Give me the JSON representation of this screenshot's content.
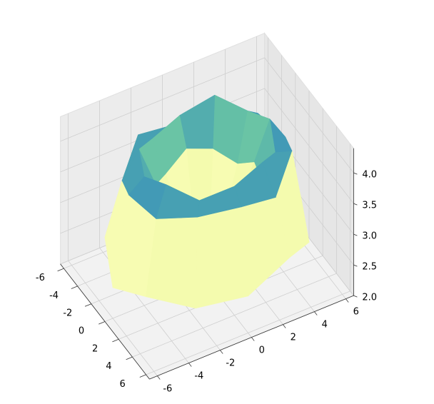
{
  "chart_data": {
    "type": "surface3d",
    "colormap": "Spectral",
    "grid": true,
    "r": [
      0,
      1,
      2,
      3,
      4,
      5,
      6
    ],
    "theta": [
      0,
      30,
      60,
      90,
      120,
      150,
      180,
      210,
      240,
      270,
      300,
      330
    ],
    "z": [
      [
        2.0,
        2.0,
        2.0,
        2.0,
        2.0,
        2.0,
        2.0,
        2.0,
        2.0,
        2.0,
        2.0,
        2.0
      ],
      [
        2.3,
        2.2,
        2.4,
        2.3,
        2.1,
        2.3,
        2.4,
        2.2,
        2.3,
        2.5,
        2.3,
        2.2
      ],
      [
        2.9,
        3.0,
        2.8,
        3.1,
        2.9,
        3.0,
        2.7,
        3.0,
        2.9,
        3.1,
        2.8,
        3.0
      ],
      [
        3.6,
        3.5,
        3.7,
        3.6,
        3.4,
        3.6,
        3.7,
        3.5,
        3.6,
        3.8,
        3.5,
        3.6
      ],
      [
        4.1,
        4.2,
        4.0,
        4.2,
        4.1,
        4.3,
        4.1,
        4.0,
        4.2,
        4.1,
        4.2,
        4.0
      ],
      [
        3.9,
        3.7,
        4.0,
        3.8,
        3.9,
        3.6,
        3.8,
        4.0,
        3.7,
        3.9,
        3.8,
        3.9
      ],
      [
        2.6,
        2.8,
        2.5,
        2.7,
        2.9,
        2.6,
        2.4,
        2.7,
        2.8,
        2.5,
        2.7,
        2.6
      ]
    ],
    "xlim": [
      -6.5,
      6.5
    ],
    "ylim": [
      -6.5,
      6.5
    ],
    "zlim": [
      2.0,
      4.4
    ],
    "xticks": [
      -6,
      -4,
      -2,
      0,
      2,
      4,
      6
    ],
    "yticks": [
      -6,
      -4,
      -2,
      0,
      2,
      4,
      6
    ],
    "zticks": [
      {
        "value": 2,
        "label": "2.0"
      },
      {
        "value": 2.5,
        "label": "2.5"
      },
      {
        "value": 3,
        "label": "3.0"
      },
      {
        "value": 3.5,
        "label": "3.5"
      },
      {
        "value": 4,
        "label": "4.0"
      }
    ]
  }
}
